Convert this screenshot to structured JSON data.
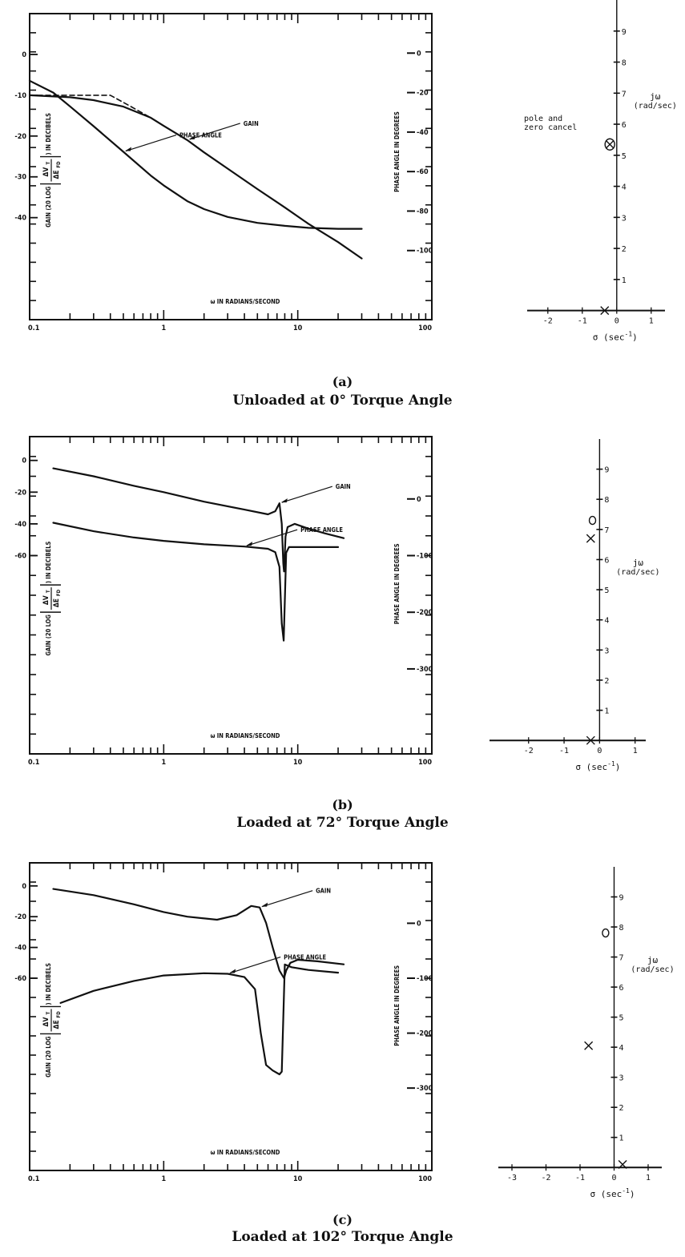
{
  "chart_data": [
    {
      "id": "a",
      "type": "line",
      "caption_letter": "(a)",
      "caption_text": "Unloaded at 0° Torque Angle",
      "bode": {
        "x_log_range": [
          0.1,
          100
        ],
        "x_tick_labels": [
          "0.1",
          "1",
          "10",
          "100"
        ],
        "x_axis_label": "ω IN RADIANS/SECOND",
        "gain_axis_label_prefix": "GAIN (20 LOG",
        "gain_axis_label_num": "ΔV",
        "gain_axis_label_num_sub": "T",
        "gain_axis_label_den": "ΔE",
        "gain_axis_label_den_sub": "FD",
        "gain_axis_label_suffix": ") IN DECIBELS",
        "phase_axis_label": "PHASE ANGLE IN DEGREES",
        "gain_range": [
          -65,
          10
        ],
        "gain_ticks": [
          "0",
          "-10",
          "-20",
          "-30",
          "-40"
        ],
        "gain_tick_values": [
          0,
          -10,
          -20,
          -30,
          -40
        ],
        "phase_range": [
          -135,
          20
        ],
        "phase_ticks": [
          "0",
          "-20",
          "-40",
          "-60",
          "-80",
          "-100"
        ],
        "phase_tick_values": [
          0,
          -20,
          -40,
          -60,
          -80,
          -100
        ],
        "series": [
          {
            "name": "GAIN",
            "axis": "gain",
            "style": "solid",
            "x": [
              0.1,
              0.2,
              0.3,
              0.5,
              0.8,
              1.0,
              1.5,
              2.0,
              3.0,
              5.0,
              8.0,
              12.0,
              20.0,
              30.0
            ],
            "y": [
              -10,
              -10.5,
              -11.2,
              -12.8,
              -15.5,
              -17.5,
              -21,
              -24,
              -28,
              -33,
              -37.5,
              -41.5,
              -46,
              -50
            ]
          },
          {
            "name": "",
            "axis": "gain",
            "style": "dashed",
            "x": [
              0.1,
              0.2,
              0.3,
              0.4,
              0.55,
              0.8,
              1.0
            ],
            "y": [
              -10,
              -10,
              -10,
              -10,
              -12.5,
              -15.5,
              -17.5
            ]
          },
          {
            "name": "PHASE ANGLE",
            "axis": "phase",
            "style": "solid",
            "x": [
              0.1,
              0.15,
              0.2,
              0.3,
              0.5,
              0.8,
              1.0,
              1.5,
              2.0,
              3.0,
              5.0,
              8.0,
              12.0,
              20.0,
              30.0
            ],
            "y": [
              -14,
              -20,
              -27,
              -37,
              -50,
              -62,
              -67,
              -75,
              -79,
              -83,
              -86,
              -87.5,
              -88.5,
              -89,
              -89
            ]
          }
        ],
        "annotations": [
          {
            "text": "GAIN",
            "series": 0
          },
          {
            "text": "PHASE ANGLE",
            "series": 2
          }
        ]
      },
      "pz": {
        "x_range": [
          -2.6,
          1.4
        ],
        "y_range": [
          -0.5,
          10
        ],
        "x_ticks": [
          "-2",
          "-1",
          "0",
          "1"
        ],
        "x_tick_values": [
          -2,
          -1,
          0,
          1
        ],
        "y_ticks": [
          "1",
          "2",
          "3",
          "4",
          "5",
          "6",
          "7",
          "8",
          "9"
        ],
        "y_tick_values": [
          1,
          2,
          3,
          4,
          5,
          6,
          7,
          8,
          9
        ],
        "x_label": "σ (sec",
        "x_label_sup": "-1",
        "x_label_end": ")",
        "y_label_top": "jω",
        "y_label_bottom": "(rad/sec)",
        "points": [
          {
            "kind": "pole",
            "sigma": -0.35,
            "omega": 0
          },
          {
            "kind": "pole-zero",
            "sigma": -0.2,
            "omega": 5.35
          }
        ],
        "note_line1": "pole and",
        "note_line2": "zero cancel"
      }
    },
    {
      "id": "b",
      "type": "line",
      "caption_letter": "(b)",
      "caption_text": "Loaded at 72° Torque Angle",
      "bode": {
        "x_log_range": [
          0.1,
          100
        ],
        "x_tick_labels": [
          "0.1",
          "1",
          "10",
          "100"
        ],
        "x_axis_label": "ω IN RADIANS/SECOND",
        "gain_axis_label_prefix": "GAIN (20 LOG",
        "gain_axis_label_num": "ΔV",
        "gain_axis_label_num_sub": "T",
        "gain_axis_label_den": "ΔE",
        "gain_axis_label_den_sub": "FD",
        "gain_axis_label_suffix": ") IN DECIBELS",
        "phase_axis_label": "PHASE ANGLE IN DEGREES",
        "gain_range": [
          -185,
          15
        ],
        "gain_ticks": [
          "0",
          "-20",
          "-40",
          "-60"
        ],
        "gain_tick_values": [
          0,
          -20,
          -40,
          -60
        ],
        "phase_range": [
          -450,
          110
        ],
        "phase_ticks": [
          "0",
          "-100",
          "-200",
          "-300"
        ],
        "phase_tick_values": [
          0,
          -100,
          -200,
          -300
        ],
        "series": [
          {
            "name": "GAIN",
            "axis": "gain",
            "style": "solid",
            "x": [
              0.15,
              0.3,
              0.6,
              1.0,
              2.0,
              4.0,
              6.0,
              6.8,
              7.3,
              7.6,
              7.8,
              7.9,
              8.1,
              8.4,
              9.5,
              12.0,
              16.0,
              22.0
            ],
            "y": [
              -5,
              -10,
              -16,
              -20,
              -26,
              -31,
              -34,
              -32,
              -27,
              -40,
              -65,
              -70,
              -48,
              -42,
              -40,
              -43,
              -46,
              -49
            ]
          },
          {
            "name": "PHASE ANGLE",
            "axis": "phase",
            "style": "solid",
            "x": [
              0.15,
              0.3,
              0.6,
              1.0,
              2.0,
              4.0,
              6.0,
              6.8,
              7.3,
              7.6,
              7.85,
              8.0,
              8.2,
              8.6,
              10.0,
              14.0,
              20.0
            ],
            "y": [
              -42,
              -57,
              -68,
              -74,
              -80,
              -84,
              -88,
              -94,
              -120,
              -220,
              -250,
              -180,
              -95,
              -85,
              -85,
              -85,
              -85
            ]
          }
        ],
        "annotations": [
          {
            "text": "GAIN",
            "series": 0
          },
          {
            "text": "PHASE ANGLE",
            "series": 1
          }
        ]
      },
      "pz": {
        "x_range": [
          -3.1,
          1.3
        ],
        "y_range": [
          -0.5,
          10
        ],
        "x_ticks": [
          "-2",
          "-1",
          "0",
          "1"
        ],
        "x_tick_values": [
          -2,
          -1,
          0,
          1
        ],
        "y_ticks": [
          "1",
          "2",
          "3",
          "4",
          "5",
          "6",
          "7",
          "8",
          "9"
        ],
        "y_tick_values": [
          1,
          2,
          3,
          4,
          5,
          6,
          7,
          8,
          9
        ],
        "x_label": "σ (sec",
        "x_label_sup": "-1",
        "x_label_end": ")",
        "y_label_top": "jω",
        "y_label_bottom": "(rad/sec)",
        "points": [
          {
            "kind": "pole",
            "sigma": -0.25,
            "omega": 0
          },
          {
            "kind": "zero",
            "sigma": -0.2,
            "omega": 7.3
          },
          {
            "kind": "pole",
            "sigma": -0.25,
            "omega": 6.7
          }
        ]
      }
    },
    {
      "id": "c",
      "type": "line",
      "caption_letter": "(c)",
      "caption_text": "Loaded at 102° Torque Angle",
      "bode": {
        "x_log_range": [
          0.1,
          100
        ],
        "x_tick_labels": [
          "0.1",
          "1",
          "10",
          "100"
        ],
        "x_axis_label": "ω IN RADIANS/SECOND",
        "gain_axis_label_prefix": "GAIN (20 LOG",
        "gain_axis_label_num": "ΔV",
        "gain_axis_label_num_sub": "T",
        "gain_axis_label_den": "ΔE",
        "gain_axis_label_den_sub": "FD",
        "gain_axis_label_suffix": ") IN DECIBELS",
        "phase_axis_label": "PHASE ANGLE IN DEGREES",
        "gain_range": [
          -185,
          15
        ],
        "gain_ticks": [
          "0",
          "-20",
          "-40",
          "-60"
        ],
        "gain_tick_values": [
          0,
          -20,
          -40,
          -60
        ],
        "phase_range": [
          -450,
          110
        ],
        "phase_ticks": [
          "0",
          "-100",
          "-200",
          "-300"
        ],
        "phase_tick_values": [
          0,
          -100,
          -200,
          -300
        ],
        "series": [
          {
            "name": "GAIN",
            "axis": "gain",
            "style": "solid",
            "x": [
              0.15,
              0.3,
              0.6,
              1.0,
              1.5,
              2.5,
              3.5,
              4.5,
              5.2,
              5.8,
              6.5,
              7.3,
              7.9,
              8.2,
              8.8,
              10.0,
              14.0,
              22.0
            ],
            "y": [
              -2,
              -6,
              -12,
              -17,
              -20,
              -22,
              -19,
              -13,
              -14,
              -24,
              -40,
              -55,
              -60,
              -55,
              -50,
              -48,
              -49,
              -51
            ]
          },
          {
            "name": "PHASE ANGLE",
            "axis": "phase",
            "style": "solid",
            "x": [
              0.17,
              0.3,
              0.6,
              1.0,
              2.0,
              3.0,
              4.0,
              4.8,
              5.3,
              5.8,
              6.5,
              7.3,
              7.6,
              8.0,
              9.0,
              12.0,
              20.0
            ],
            "y": [
              -145,
              -123,
              -105,
              -95,
              -91,
              -92,
              -98,
              -120,
              -200,
              -258,
              -268,
              -275,
              -270,
              -75,
              -80,
              -85,
              -90
            ]
          }
        ],
        "annotations": [
          {
            "text": "GAIN",
            "series": 0
          },
          {
            "text": "PHASE ANGLE",
            "series": 1
          }
        ]
      },
      "pz": {
        "x_range": [
          -3.4,
          1.4
        ],
        "y_range": [
          -0.5,
          10
        ],
        "x_ticks": [
          "-3",
          "-2",
          "-1",
          "0",
          "1"
        ],
        "x_tick_values": [
          -3,
          -2,
          -1,
          0,
          1
        ],
        "y_ticks": [
          "1",
          "2",
          "3",
          "4",
          "5",
          "6",
          "7",
          "8",
          "9"
        ],
        "y_tick_values": [
          1,
          2,
          3,
          4,
          5,
          6,
          7,
          8,
          9
        ],
        "x_label": "σ (sec",
        "x_label_sup": "-1",
        "x_label_end": ")",
        "y_label_top": "jω",
        "y_label_bottom": "(rad/sec)",
        "points": [
          {
            "kind": "pole",
            "sigma": 0.25,
            "omega": 0.1
          },
          {
            "kind": "zero",
            "sigma": -0.25,
            "omega": 7.8
          },
          {
            "kind": "pole",
            "sigma": -0.75,
            "omega": 4.05
          }
        ]
      }
    }
  ]
}
